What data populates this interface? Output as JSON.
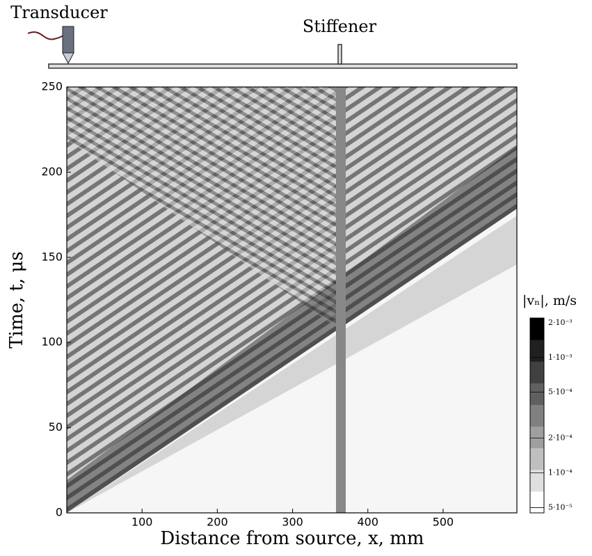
{
  "chart_data": {
    "type": "heatmap",
    "annotations": [
      "Transducer",
      "Stiffener"
    ],
    "x_label": "Distance from source, x,  mm",
    "y_label": "Time, t,  μs",
    "xlim": [
      0,
      598
    ],
    "xticks": [
      100,
      200,
      300,
      400,
      500
    ],
    "ylim": [
      0,
      250
    ],
    "yticks": [
      0,
      50,
      100,
      150,
      200,
      250
    ],
    "colormap": "gray_r",
    "colorbar": {
      "label": "|vₙ|,  m/s",
      "scale": "log",
      "lim": [
        4.5e-05,
        0.0022
      ],
      "ticks": [
        {
          "value": 5e-05,
          "label": "5·10⁻⁵"
        },
        {
          "value": 0.0001,
          "label": "1·10⁻⁴"
        },
        {
          "value": 0.0002,
          "label": "2·10⁻⁴"
        },
        {
          "value": 0.0005,
          "label": "5·10⁻⁴"
        },
        {
          "value": 0.001,
          "label": "1·10⁻³"
        },
        {
          "value": 0.002,
          "label": "2·10⁻³"
        }
      ]
    }
  }
}
